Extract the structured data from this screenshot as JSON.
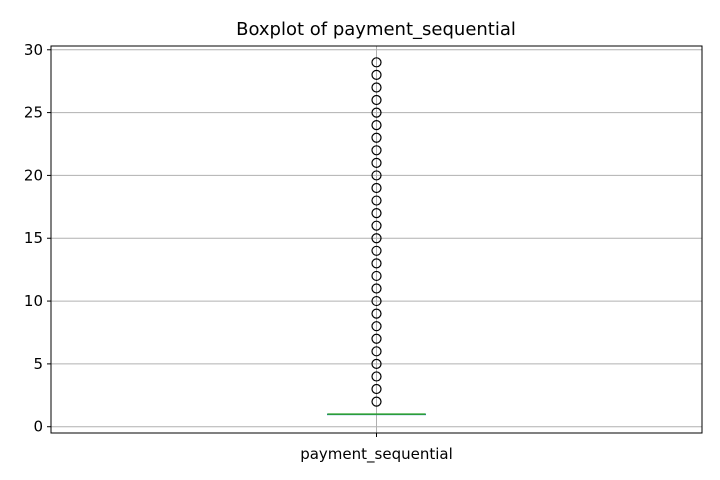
{
  "chart_data": {
    "type": "boxplot",
    "title": "Boxplot of payment_sequential",
    "xlabel": "",
    "ylabel": "",
    "categories": [
      "payment_sequential"
    ],
    "ylim": [
      -0.5,
      30.3
    ],
    "yticks": [
      0,
      5,
      10,
      15,
      20,
      25,
      30
    ],
    "grid": true,
    "box": {
      "min": 1,
      "q1": 1,
      "median": 1,
      "q3": 1,
      "max": 1
    },
    "outliers": [
      2,
      3,
      4,
      5,
      6,
      7,
      8,
      9,
      10,
      11,
      12,
      13,
      14,
      15,
      16,
      17,
      18,
      19,
      20,
      21,
      22,
      23,
      24,
      25,
      26,
      27,
      28,
      29
    ],
    "colors": {
      "median": "#2ca02c",
      "box": "#1f77b4",
      "grid": "#b0b0b0",
      "outlier_edge": "#000000"
    }
  }
}
